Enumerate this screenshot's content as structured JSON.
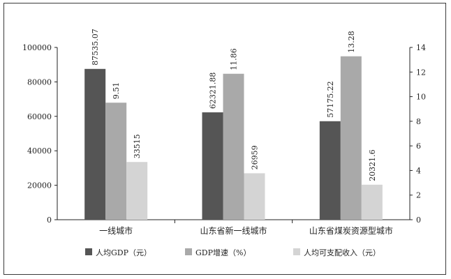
{
  "chart_data": {
    "type": "bar",
    "categories": [
      "一线城市",
      "山东省新一线城市",
      "山东省煤炭资源型城市"
    ],
    "series": [
      {
        "name": "人均GDP（元）",
        "axis": "left",
        "color": "#555555",
        "values": [
          87535.07,
          62321.88,
          57175.22
        ],
        "labels": [
          "87535.07",
          "62321.88",
          "57175.22"
        ]
      },
      {
        "name": "GDP增速（%）",
        "axis": "right",
        "color": "#a9a9a9",
        "values": [
          9.51,
          11.86,
          13.28
        ],
        "labels": [
          "9.51",
          "11.86",
          "13.28"
        ]
      },
      {
        "name": "人均可支配收入（元）",
        "axis": "left",
        "color": "#d4d4d4",
        "values": [
          33515,
          26959,
          20321.6
        ],
        "labels": [
          "33515",
          "26959",
          "20321.6"
        ]
      }
    ],
    "y_left": {
      "min": 0,
      "max": 100000,
      "ticks": [
        "0",
        "20000",
        "40000",
        "60000",
        "80000",
        "100000"
      ]
    },
    "y_right": {
      "min": 0,
      "max": 14,
      "ticks": [
        "0",
        "2",
        "4",
        "6",
        "8",
        "10",
        "12",
        "14"
      ]
    },
    "grid": false,
    "legend": "bottom"
  }
}
